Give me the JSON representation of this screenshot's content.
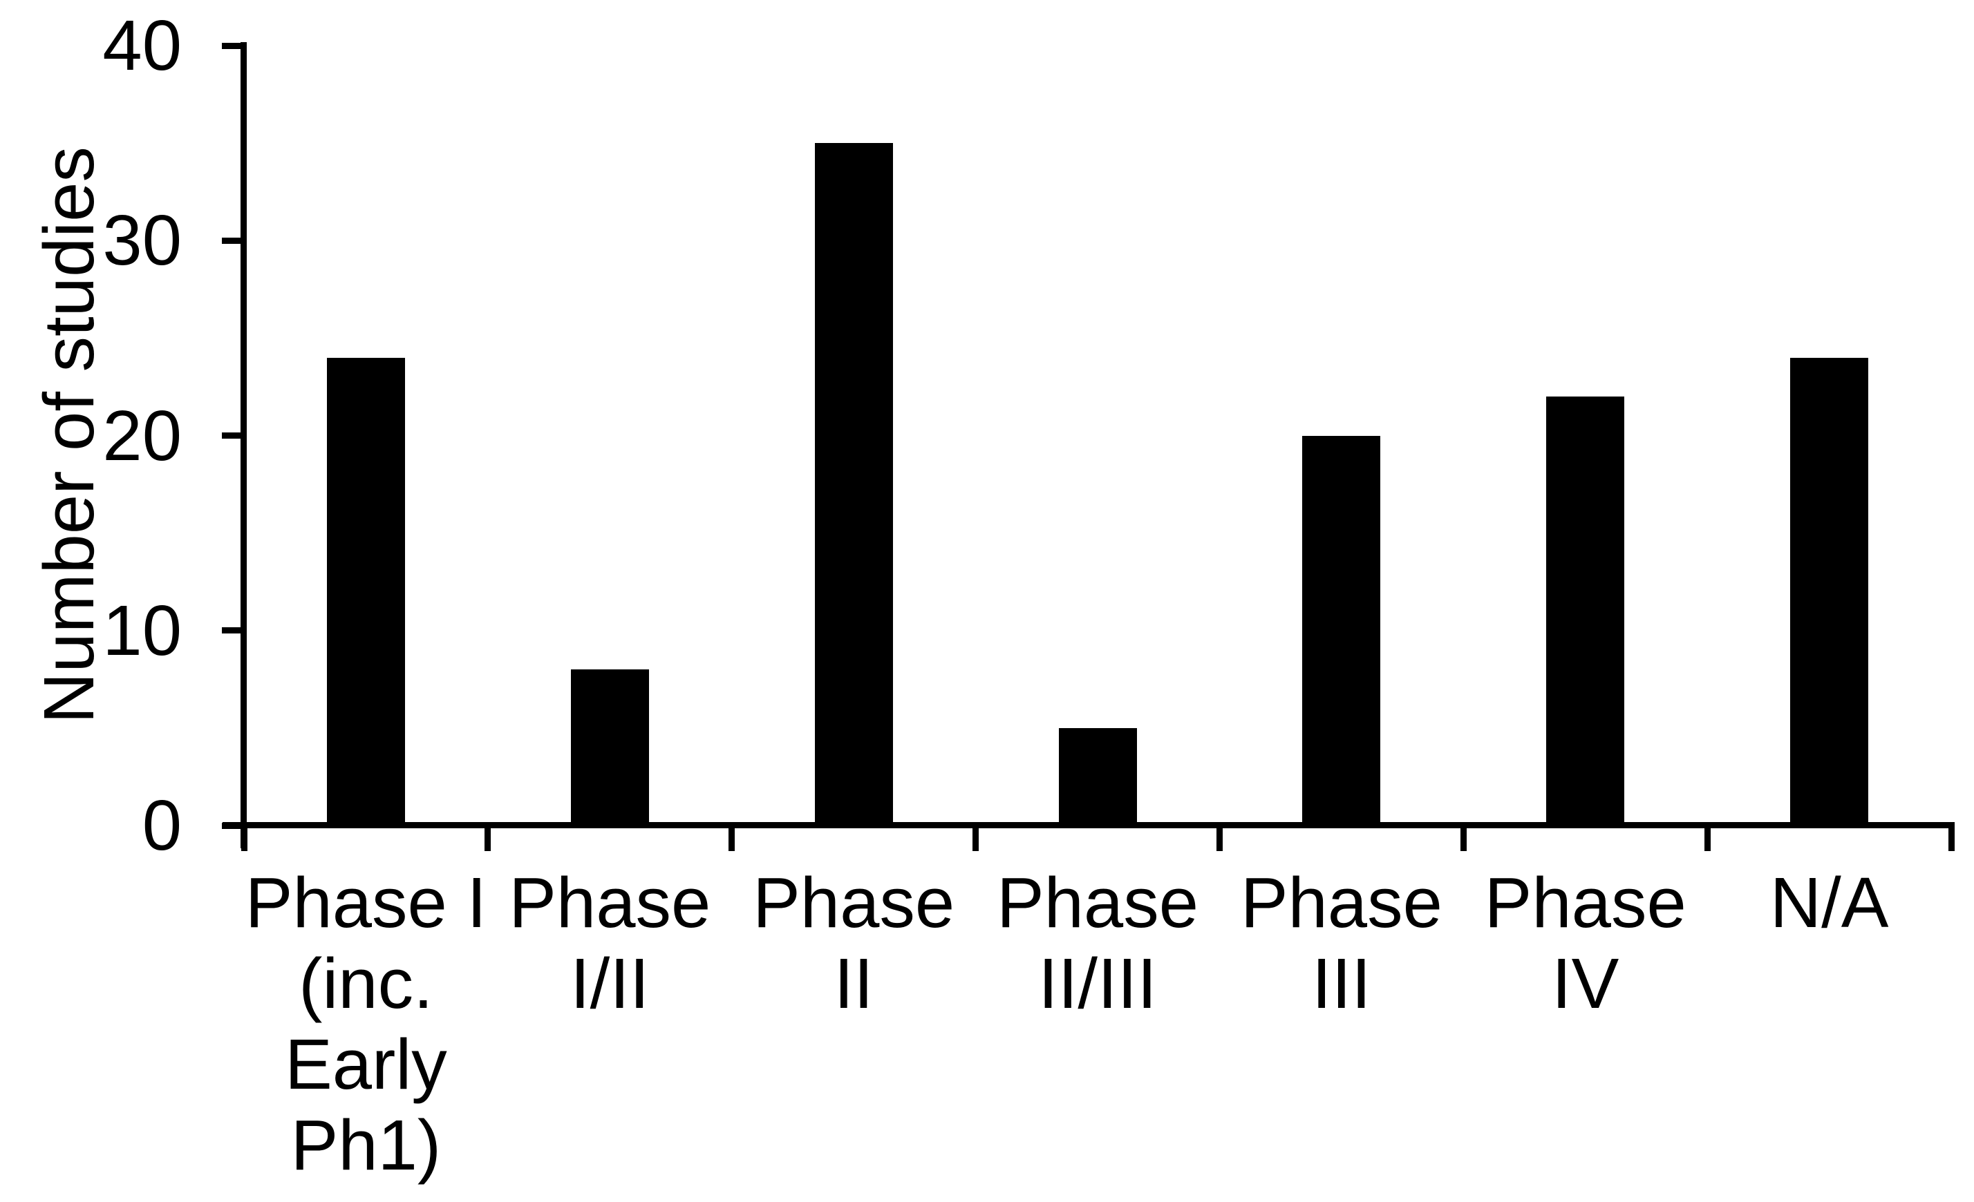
{
  "chart_data": {
    "type": "bar",
    "title": "",
    "xlabel": "",
    "ylabel": "Number of studies",
    "categories": [
      "Phase I (inc. Early Ph1)",
      "Phase I/II",
      "Phase II",
      "Phase II/III",
      "Phase III",
      "Phase IV",
      "N/A"
    ],
    "category_lines": [
      [
        "Phase I",
        "(inc.",
        "Early",
        "Ph1)"
      ],
      [
        "Phase",
        "I/II"
      ],
      [
        "Phase",
        "II"
      ],
      [
        "Phase",
        "II/III"
      ],
      [
        "Phase",
        "III"
      ],
      [
        "Phase",
        "IV"
      ],
      [
        "N/A"
      ]
    ],
    "values": [
      24,
      8,
      35,
      5,
      20,
      22,
      24
    ],
    "yticks": [
      0,
      10,
      20,
      30,
      40
    ],
    "ylim": [
      0,
      40
    ],
    "grid": false,
    "legend": false,
    "bar_color": "#000000",
    "background_color": "#ffffff"
  }
}
